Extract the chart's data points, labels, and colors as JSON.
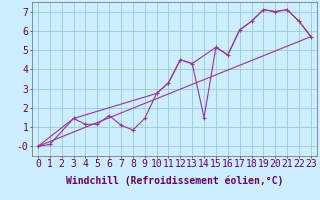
{
  "background_color": "#cceeff",
  "grid_color": "#99cccc",
  "line_color": "#993399",
  "xlabel": "Windchill (Refroidissement éolien,°C)",
  "xlim": [
    -0.5,
    23.5
  ],
  "ylim": [
    -0.5,
    7.5
  ],
  "ytick_vals": [
    0,
    1,
    2,
    3,
    4,
    5,
    6,
    7
  ],
  "ytick_labels": [
    "-0",
    "1",
    "2",
    "3",
    "4",
    "5",
    "6",
    "7"
  ],
  "xtick_vals": [
    0,
    1,
    2,
    3,
    4,
    5,
    6,
    7,
    8,
    9,
    10,
    11,
    12,
    13,
    14,
    15,
    16,
    17,
    18,
    19,
    20,
    21,
    22,
    23
  ],
  "line1_x": [
    0,
    1,
    3,
    4,
    5,
    6,
    7,
    8,
    9,
    10,
    11,
    12,
    13,
    14,
    15,
    16,
    17,
    18,
    19,
    20,
    21,
    22,
    23
  ],
  "line1_y": [
    0.0,
    0.1,
    1.45,
    1.15,
    1.15,
    1.6,
    1.1,
    0.85,
    1.45,
    2.75,
    3.3,
    4.5,
    4.3,
    1.5,
    5.15,
    4.75,
    6.05,
    6.5,
    7.1,
    7.0,
    7.1,
    6.5,
    5.7
  ],
  "line2_x": [
    0,
    3,
    10,
    11,
    12,
    13,
    15,
    16,
    17,
    18,
    19,
    20,
    21,
    22,
    23
  ],
  "line2_y": [
    0.0,
    1.45,
    2.75,
    3.3,
    4.5,
    4.3,
    5.15,
    4.75,
    6.05,
    6.5,
    7.1,
    7.0,
    7.1,
    6.5,
    5.7
  ],
  "line3_x": [
    0,
    23
  ],
  "line3_y": [
    0.0,
    5.7
  ],
  "font_size_label": 7,
  "font_size_tick": 7
}
